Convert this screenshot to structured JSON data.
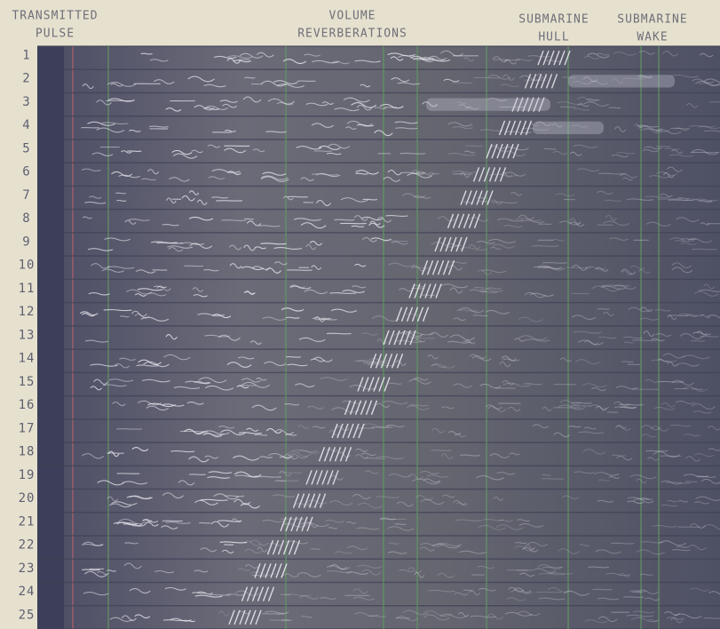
{
  "header": {
    "labels": [
      {
        "lines": [
          "TRANSMITTED",
          "PULSE"
        ]
      },
      {
        "lines": [
          "VOLUME",
          "REVERBERATIONS"
        ]
      },
      {
        "lines": [
          "SUBMARINE",
          "HULL"
        ]
      },
      {
        "lines": [
          "SUBMARINE",
          "WAKE"
        ]
      }
    ]
  },
  "rows": [
    "1",
    "2",
    "3",
    "4",
    "5",
    "6",
    "7",
    "8",
    "9",
    "10",
    "11",
    "12",
    "13",
    "14",
    "15",
    "16",
    "17",
    "18",
    "19",
    "20",
    "21",
    "22",
    "23",
    "24",
    "25"
  ]
}
